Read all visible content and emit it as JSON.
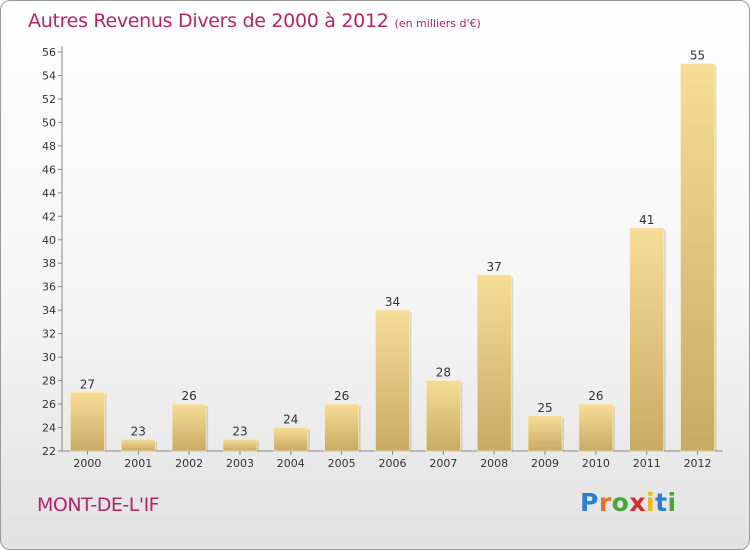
{
  "header": {
    "title": "Autres Revenus Divers de 2000 à 2012",
    "unit": "(en milliers d'€)"
  },
  "footer": {
    "commune": "MONT-DE-L'IF",
    "brand_letters": [
      {
        "char": "P",
        "color": "#2a7fd0"
      },
      {
        "char": "r",
        "color": "#e8731c"
      },
      {
        "char": "o",
        "color": "#47a63a"
      },
      {
        "char": "x",
        "color": "#d82a2a"
      },
      {
        "char": "i",
        "color": "#f0b81a"
      },
      {
        "char": "t",
        "color": "#2a7fd0"
      },
      {
        "char": "i",
        "color": "#47a63a"
      }
    ]
  },
  "chart_data": {
    "type": "bar",
    "title": "Autres Revenus Divers de 2000 à 2012",
    "xlabel": "",
    "ylabel": "",
    "categories": [
      "2000",
      "2001",
      "2002",
      "2003",
      "2004",
      "2005",
      "2006",
      "2007",
      "2008",
      "2009",
      "2010",
      "2011",
      "2012"
    ],
    "values": [
      27,
      23,
      26,
      23,
      24,
      26,
      34,
      28,
      37,
      25,
      26,
      41,
      55
    ],
    "data_labels": [
      "27",
      "23",
      "26",
      "23",
      "24",
      "26",
      "34",
      "28",
      "37",
      "25",
      "26",
      "41",
      "55"
    ],
    "ylim": [
      22,
      56
    ],
    "yticks": [
      "22",
      "24",
      "26",
      "28",
      "30",
      "32",
      "34",
      "36",
      "38",
      "40",
      "42",
      "44",
      "46",
      "48",
      "50",
      "52",
      "54",
      "56"
    ],
    "grid": false,
    "legend": "none",
    "colors": {
      "bar_light": "#f6dd96",
      "bar_dark": "#c8ab63",
      "axis": "#888888",
      "text": "#333333"
    }
  }
}
